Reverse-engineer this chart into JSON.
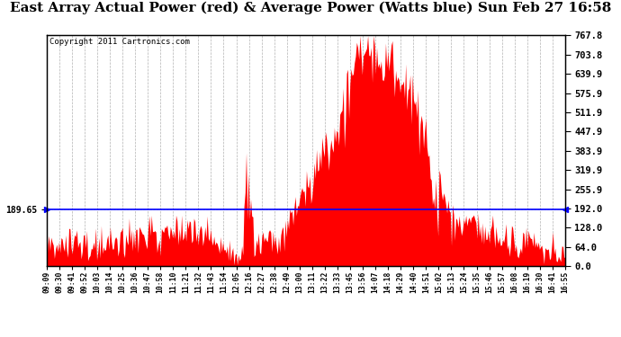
{
  "title": "East Array Actual Power (red) & Average Power (Watts blue) Sun Feb 27 16:58",
  "copyright": "Copyright 2011 Cartronics.com",
  "avg_power": 189.65,
  "y_max": 767.8,
  "y_min": 0.0,
  "y_ticks_right": [
    0.0,
    64.0,
    128.0,
    192.0,
    255.9,
    319.9,
    383.9,
    447.9,
    511.9,
    575.9,
    639.9,
    703.8,
    767.8
  ],
  "background_color": "#ffffff",
  "grid_color": "#aaaaaa",
  "bar_color": "#ff0000",
  "avg_line_color": "#0000ff",
  "title_fontsize": 12,
  "x_tick_labels": [
    "09:09",
    "09:30",
    "09:41",
    "09:52",
    "10:03",
    "10:14",
    "10:25",
    "10:36",
    "10:47",
    "10:58",
    "11:10",
    "11:21",
    "11:32",
    "11:43",
    "11:54",
    "12:05",
    "12:16",
    "12:27",
    "12:38",
    "12:49",
    "13:00",
    "13:11",
    "13:22",
    "13:33",
    "13:45",
    "13:56",
    "14:07",
    "14:18",
    "14:29",
    "14:40",
    "14:51",
    "15:02",
    "15:13",
    "15:24",
    "15:35",
    "15:46",
    "15:57",
    "16:08",
    "16:19",
    "16:30",
    "16:41",
    "16:55"
  ]
}
